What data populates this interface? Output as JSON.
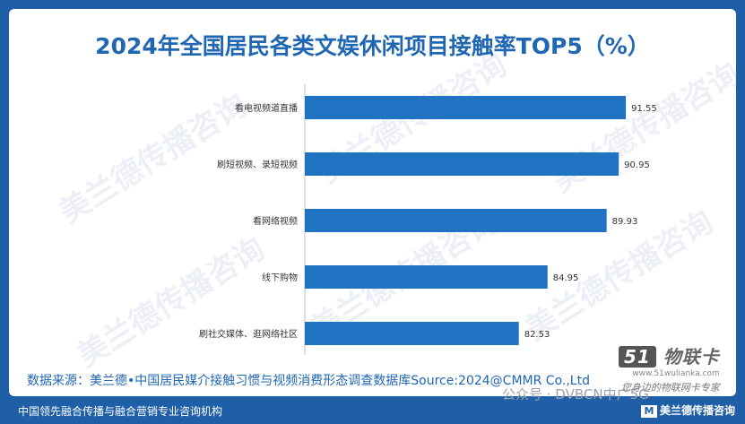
{
  "title": "2024年全国居民各类文娱休闲项目接触率TOP5（%）",
  "source": "数据来源：美兰德•中国居民媒介接触习惯与视频消费形态调查数据库Source:2024@CMMR Co.,Ltd",
  "watermark_text": "美兰德传播咨询",
  "brand_block": {
    "logo_num": "51",
    "logo_text": "物联卡",
    "url": "www.51wulianka.com",
    "slogan": "您身边的物联网卡专家"
  },
  "footer": {
    "left": "中国领先融合传播与融合营销专业咨询机构",
    "wechat": "公众号 · DVBCN中广5G",
    "brand_mark": "M",
    "brand": "美兰德传播咨询"
  },
  "colors": {
    "bar": "#1f73c2",
    "title": "#1f66b3",
    "background": "#1f5fa8"
  },
  "chart_data": {
    "type": "bar",
    "orientation": "horizontal",
    "categories": [
      "看电视频道直播",
      "刷短视频、录短视频",
      "看网络视频",
      "线下购物",
      "刷社交媒体、逛网络社区"
    ],
    "values": [
      91.55,
      90.95,
      89.93,
      84.95,
      82.53
    ],
    "title": "2024年全国居民各类文娱休闲项目接触率TOP5（%）",
    "xlabel": "",
    "ylabel": "",
    "xlim": [
      64.5,
      100
    ],
    "grid": false,
    "legend": "none"
  }
}
